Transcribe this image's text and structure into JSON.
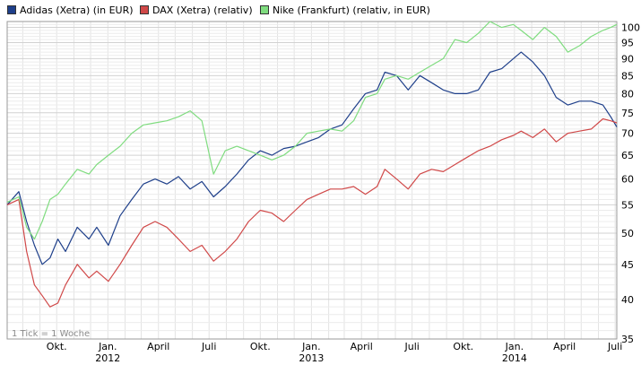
{
  "chart_data": {
    "type": "line",
    "title": "",
    "xlabel": "",
    "ylabel": "",
    "x_range": [
      "2011-07-04",
      "2014-07-04"
    ],
    "ylim": [
      35,
      102
    ],
    "y_scale": "log",
    "grid": true,
    "legend_placement": "top-left",
    "y_ticks": [
      "35",
      "40",
      "45",
      "50",
      "55",
      "60",
      "65",
      "70",
      "75",
      "80",
      "85",
      "90",
      "95",
      "100"
    ],
    "x_ticks": [
      {
        "date": "2011-10-01",
        "label": "Okt."
      },
      {
        "date": "2012-01-01",
        "label": "Jan."
      },
      {
        "date": "2012-04-01",
        "label": "April"
      },
      {
        "date": "2012-07-01",
        "label": "Juli"
      },
      {
        "date": "2012-10-01",
        "label": "Okt."
      },
      {
        "date": "2013-01-01",
        "label": "Jan."
      },
      {
        "date": "2013-04-01",
        "label": "April"
      },
      {
        "date": "2013-07-01",
        "label": "Juli"
      },
      {
        "date": "2013-10-01",
        "label": "Okt."
      },
      {
        "date": "2014-01-01",
        "label": "Jan."
      },
      {
        "date": "2014-04-01",
        "label": "April"
      },
      {
        "date": "2014-07-01",
        "label": "Juli"
      }
    ],
    "year_labels": [
      {
        "date": "2012-01-01",
        "label": "2012"
      },
      {
        "date": "2013-01-01",
        "label": "2013"
      },
      {
        "date": "2014-01-01",
        "label": "2014"
      }
    ],
    "annotation": "1 Tick = 1 Woche",
    "series": [
      {
        "name": "Adidas (Xetra) (in EUR)",
        "color": "#1e3f8a",
        "points": [
          [
            "2011-07-04",
            55.0
          ],
          [
            "2011-07-25",
            57.5
          ],
          [
            "2011-08-08",
            52.0
          ],
          [
            "2011-08-22",
            48.0
          ],
          [
            "2011-09-05",
            45.0
          ],
          [
            "2011-09-19",
            46.0
          ],
          [
            "2011-10-03",
            49.0
          ],
          [
            "2011-10-17",
            47.0
          ],
          [
            "2011-11-07",
            51.0
          ],
          [
            "2011-11-28",
            49.0
          ],
          [
            "2011-12-12",
            51.0
          ],
          [
            "2012-01-02",
            48.0
          ],
          [
            "2012-01-23",
            53.0
          ],
          [
            "2012-02-13",
            56.0
          ],
          [
            "2012-03-05",
            59.0
          ],
          [
            "2012-03-26",
            60.0
          ],
          [
            "2012-04-16",
            59.0
          ],
          [
            "2012-05-07",
            60.5
          ],
          [
            "2012-05-28",
            58.0
          ],
          [
            "2012-06-18",
            59.5
          ],
          [
            "2012-07-09",
            56.5
          ],
          [
            "2012-07-30",
            58.5
          ],
          [
            "2012-08-20",
            61.0
          ],
          [
            "2012-09-10",
            64.0
          ],
          [
            "2012-10-01",
            66.0
          ],
          [
            "2012-10-22",
            65.0
          ],
          [
            "2012-11-12",
            66.5
          ],
          [
            "2012-12-03",
            67.0
          ],
          [
            "2012-12-24",
            68.0
          ],
          [
            "2013-01-14",
            69.0
          ],
          [
            "2013-02-04",
            71.0
          ],
          [
            "2013-02-25",
            72.0
          ],
          [
            "2013-03-18",
            76.0
          ],
          [
            "2013-04-08",
            80.0
          ],
          [
            "2013-04-29",
            81.0
          ],
          [
            "2013-05-13",
            86.0
          ],
          [
            "2013-06-03",
            85.0
          ],
          [
            "2013-06-24",
            81.0
          ],
          [
            "2013-07-15",
            85.0
          ],
          [
            "2013-08-05",
            83.0
          ],
          [
            "2013-08-26",
            81.0
          ],
          [
            "2013-09-16",
            80.0
          ],
          [
            "2013-10-07",
            80.0
          ],
          [
            "2013-10-28",
            81.0
          ],
          [
            "2013-11-18",
            86.0
          ],
          [
            "2013-12-09",
            87.0
          ],
          [
            "2013-12-30",
            90.0
          ],
          [
            "2014-01-13",
            92.0
          ],
          [
            "2014-02-03",
            89.0
          ],
          [
            "2014-02-24",
            85.0
          ],
          [
            "2014-03-17",
            79.0
          ],
          [
            "2014-04-07",
            77.0
          ],
          [
            "2014-04-28",
            78.0
          ],
          [
            "2014-05-19",
            78.0
          ],
          [
            "2014-06-09",
            77.0
          ],
          [
            "2014-06-23",
            74.0
          ],
          [
            "2014-07-04",
            71.5
          ]
        ]
      },
      {
        "name": "DAX (Xetra) (relativ)",
        "color": "#d04848",
        "points": [
          [
            "2011-07-04",
            55.0
          ],
          [
            "2011-07-25",
            56.0
          ],
          [
            "2011-08-08",
            47.0
          ],
          [
            "2011-08-22",
            42.0
          ],
          [
            "2011-09-05",
            40.5
          ],
          [
            "2011-09-19",
            39.0
          ],
          [
            "2011-10-03",
            39.5
          ],
          [
            "2011-10-17",
            42.0
          ],
          [
            "2011-11-07",
            45.0
          ],
          [
            "2011-11-28",
            43.0
          ],
          [
            "2011-12-12",
            44.0
          ],
          [
            "2012-01-02",
            42.5
          ],
          [
            "2012-01-23",
            45.0
          ],
          [
            "2012-02-13",
            48.0
          ],
          [
            "2012-03-05",
            51.0
          ],
          [
            "2012-03-26",
            52.0
          ],
          [
            "2012-04-16",
            51.0
          ],
          [
            "2012-05-07",
            49.0
          ],
          [
            "2012-05-28",
            47.0
          ],
          [
            "2012-06-18",
            48.0
          ],
          [
            "2012-07-09",
            45.5
          ],
          [
            "2012-07-30",
            47.0
          ],
          [
            "2012-08-20",
            49.0
          ],
          [
            "2012-09-10",
            52.0
          ],
          [
            "2012-10-01",
            54.0
          ],
          [
            "2012-10-22",
            53.5
          ],
          [
            "2012-11-12",
            52.0
          ],
          [
            "2012-12-03",
            54.0
          ],
          [
            "2012-12-24",
            56.0
          ],
          [
            "2013-01-14",
            57.0
          ],
          [
            "2013-02-04",
            58.0
          ],
          [
            "2013-02-25",
            58.0
          ],
          [
            "2013-03-18",
            58.5
          ],
          [
            "2013-04-08",
            57.0
          ],
          [
            "2013-04-29",
            58.5
          ],
          [
            "2013-05-13",
            62.0
          ],
          [
            "2013-06-03",
            60.0
          ],
          [
            "2013-06-24",
            58.0
          ],
          [
            "2013-07-15",
            61.0
          ],
          [
            "2013-08-05",
            62.0
          ],
          [
            "2013-08-26",
            61.5
          ],
          [
            "2013-09-16",
            63.0
          ],
          [
            "2013-10-07",
            64.5
          ],
          [
            "2013-10-28",
            66.0
          ],
          [
            "2013-11-18",
            67.0
          ],
          [
            "2013-12-09",
            68.5
          ],
          [
            "2013-12-30",
            69.5
          ],
          [
            "2014-01-13",
            70.5
          ],
          [
            "2014-02-03",
            69.0
          ],
          [
            "2014-02-24",
            71.0
          ],
          [
            "2014-03-17",
            68.0
          ],
          [
            "2014-04-07",
            70.0
          ],
          [
            "2014-04-28",
            70.5
          ],
          [
            "2014-05-19",
            71.0
          ],
          [
            "2014-06-09",
            73.5
          ],
          [
            "2014-06-23",
            73.0
          ],
          [
            "2014-07-04",
            72.5
          ]
        ]
      },
      {
        "name": "Nike (Frankfurt) (relativ, in EUR)",
        "color": "#7fdc7f",
        "points": [
          [
            "2011-07-04",
            55.5
          ],
          [
            "2011-07-25",
            56.5
          ],
          [
            "2011-08-08",
            51.0
          ],
          [
            "2011-08-22",
            49.0
          ],
          [
            "2011-09-05",
            52.0
          ],
          [
            "2011-09-19",
            56.0
          ],
          [
            "2011-10-03",
            57.0
          ],
          [
            "2011-10-17",
            59.0
          ],
          [
            "2011-11-07",
            62.0
          ],
          [
            "2011-11-28",
            61.0
          ],
          [
            "2011-12-12",
            63.0
          ],
          [
            "2012-01-02",
            65.0
          ],
          [
            "2012-01-23",
            67.0
          ],
          [
            "2012-02-13",
            70.0
          ],
          [
            "2012-03-05",
            72.0
          ],
          [
            "2012-03-26",
            72.5
          ],
          [
            "2012-04-16",
            73.0
          ],
          [
            "2012-05-07",
            74.0
          ],
          [
            "2012-05-28",
            75.5
          ],
          [
            "2012-06-18",
            73.0
          ],
          [
            "2012-07-09",
            61.0
          ],
          [
            "2012-07-30",
            66.0
          ],
          [
            "2012-08-20",
            67.0
          ],
          [
            "2012-09-10",
            66.0
          ],
          [
            "2012-10-01",
            65.0
          ],
          [
            "2012-10-22",
            64.0
          ],
          [
            "2012-11-12",
            65.0
          ],
          [
            "2012-12-03",
            67.0
          ],
          [
            "2012-12-24",
            70.0
          ],
          [
            "2013-01-14",
            70.5
          ],
          [
            "2013-02-04",
            71.0
          ],
          [
            "2013-02-25",
            70.5
          ],
          [
            "2013-03-18",
            73.0
          ],
          [
            "2013-04-08",
            79.0
          ],
          [
            "2013-04-29",
            80.0
          ],
          [
            "2013-05-13",
            84.0
          ],
          [
            "2013-06-03",
            85.0
          ],
          [
            "2013-06-24",
            84.0
          ],
          [
            "2013-07-15",
            86.0
          ],
          [
            "2013-08-05",
            88.0
          ],
          [
            "2013-08-26",
            90.0
          ],
          [
            "2013-09-16",
            96.0
          ],
          [
            "2013-10-07",
            95.0
          ],
          [
            "2013-10-28",
            98.0
          ],
          [
            "2013-11-18",
            102.0
          ],
          [
            "2013-12-09",
            100.0
          ],
          [
            "2013-12-30",
            101.0
          ],
          [
            "2014-01-13",
            99.0
          ],
          [
            "2014-02-03",
            96.0
          ],
          [
            "2014-02-24",
            100.0
          ],
          [
            "2014-03-17",
            97.0
          ],
          [
            "2014-04-07",
            92.0
          ],
          [
            "2014-04-28",
            94.0
          ],
          [
            "2014-05-19",
            97.0
          ],
          [
            "2014-06-09",
            99.0
          ],
          [
            "2014-06-23",
            100.0
          ],
          [
            "2014-07-04",
            101.0
          ]
        ]
      }
    ]
  }
}
